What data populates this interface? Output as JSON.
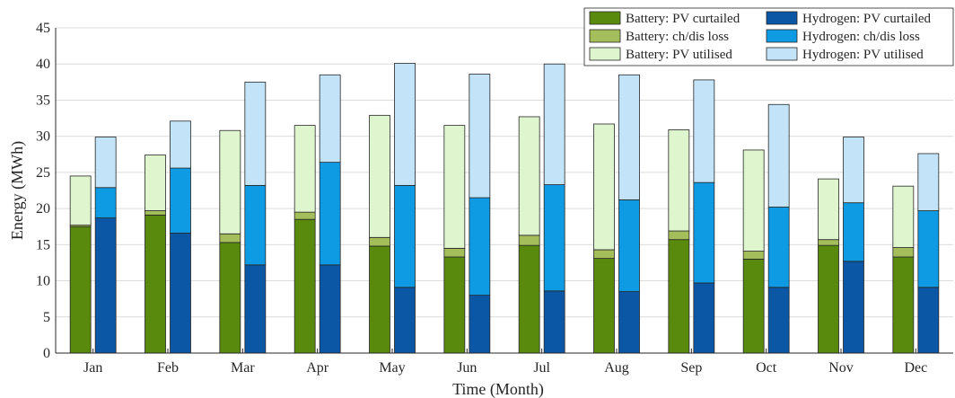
{
  "chart_data": {
    "type": "bar",
    "stacked": true,
    "grouped": true,
    "categories": [
      "Jan",
      "Feb",
      "Mar",
      "Apr",
      "May",
      "Jun",
      "Jul",
      "Aug",
      "Sep",
      "Oct",
      "Nov",
      "Dec"
    ],
    "xlabel": "Time (Month)",
    "ylabel": "Energy (MWh)",
    "ylim": [
      0,
      45
    ],
    "yticks": [
      0,
      5,
      10,
      15,
      20,
      25,
      30,
      35,
      40,
      45
    ],
    "grid": true,
    "legend_position": "top-right",
    "groups": [
      {
        "name": "Battery",
        "series": [
          {
            "name": "Battery: PV curtailed",
            "color": "#5a8a0d",
            "values": [
              17.5,
              19.1,
              15.3,
              18.5,
              14.8,
              13.3,
              14.9,
              13.1,
              15.7,
              13.0,
              14.9,
              13.3
            ]
          },
          {
            "name": "Battery: ch/dis loss",
            "color": "#a3be5a",
            "values": [
              0.2,
              0.6,
              1.2,
              1.0,
              1.2,
              1.2,
              1.4,
              1.2,
              1.2,
              1.1,
              0.8,
              1.3
            ]
          },
          {
            "name": "Battery: PV utilised",
            "color": "#dff5cd",
            "values": [
              6.8,
              7.7,
              14.3,
              12.0,
              16.9,
              17.0,
              16.4,
              17.4,
              14.0,
              14.0,
              8.4,
              8.5
            ]
          }
        ]
      },
      {
        "name": "Hydrogen",
        "series": [
          {
            "name": "Hydrogen: PV curtailed",
            "color": "#0b57a5",
            "values": [
              18.7,
              16.6,
              12.2,
              12.2,
              9.1,
              8.0,
              8.6,
              8.5,
              9.7,
              9.1,
              12.7,
              9.1
            ]
          },
          {
            "name": "Hydrogen: ch/dis loss",
            "color": "#0f9be4",
            "values": [
              4.2,
              9.0,
              11.0,
              14.2,
              14.1,
              13.5,
              14.7,
              12.7,
              13.9,
              11.1,
              8.1,
              10.6
            ]
          },
          {
            "name": "Hydrogen: PV utilised",
            "color": "#c3e4f8",
            "values": [
              7.0,
              6.5,
              14.3,
              12.1,
              16.9,
              17.1,
              16.7,
              17.3,
              14.2,
              14.2,
              9.1,
              7.9
            ]
          }
        ]
      }
    ]
  }
}
